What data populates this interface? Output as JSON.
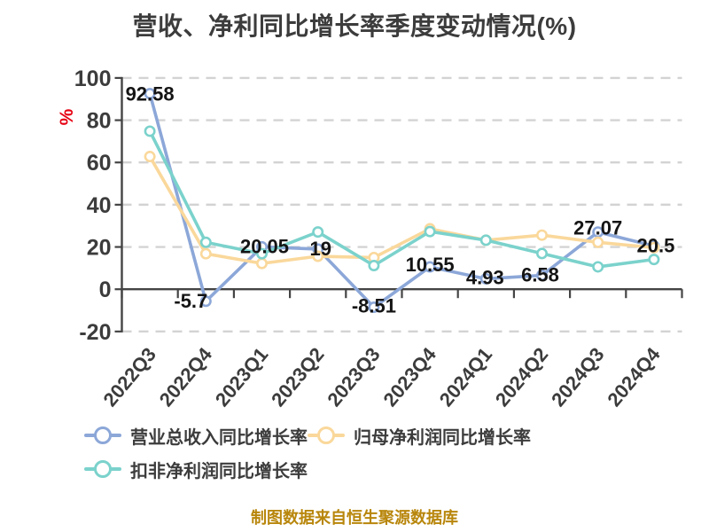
{
  "chart_data": {
    "type": "line",
    "title": "营收、净利同比增长率季度变动情况(%)",
    "source_note": "制图数据来自恒生聚源数据库",
    "categories": [
      "2022Q3",
      "2022Q4",
      "2023Q1",
      "2023Q2",
      "2023Q3",
      "2023Q4",
      "2024Q1",
      "2024Q2",
      "2024Q3",
      "2024Q4"
    ],
    "series": [
      {
        "name": "营业总收入同比增长率",
        "color": "#8ca7d8",
        "values": [
          92.58,
          -5.7,
          20.05,
          19,
          -8.51,
          10.55,
          4.93,
          6.58,
          27.07,
          20.5
        ],
        "point_labels": [
          "92.58",
          "-5.7",
          "20.05",
          "19",
          "-8.51",
          "10.55",
          "4.93",
          "6.58",
          "27.07",
          "20.5"
        ]
      },
      {
        "name": "归母净利润同比增长率",
        "color": "#fad89b",
        "values": [
          62.8,
          16.8,
          12.2,
          15.6,
          15.0,
          28.6,
          23.2,
          25.6,
          22.2,
          19.7
        ],
        "point_labels": []
      },
      {
        "name": "扣非净利润同比增长率",
        "color": "#7bd2cc",
        "values": [
          74.8,
          22.2,
          16.8,
          27.1,
          11.2,
          27.3,
          23.2,
          16.9,
          10.6,
          14.1
        ],
        "point_labels": []
      }
    ],
    "y_axis": {
      "name": "%",
      "name_color": "#e60012",
      "ticks": [
        100,
        80,
        60,
        40,
        20,
        0,
        -20
      ],
      "min": -20,
      "max": 100
    },
    "grid": true,
    "legend_position": "bottom",
    "colors": {
      "axis": "#444444",
      "gridline": "#d3d3d3",
      "tick_text": "#3c3c3c",
      "data_label": "#141414"
    }
  }
}
